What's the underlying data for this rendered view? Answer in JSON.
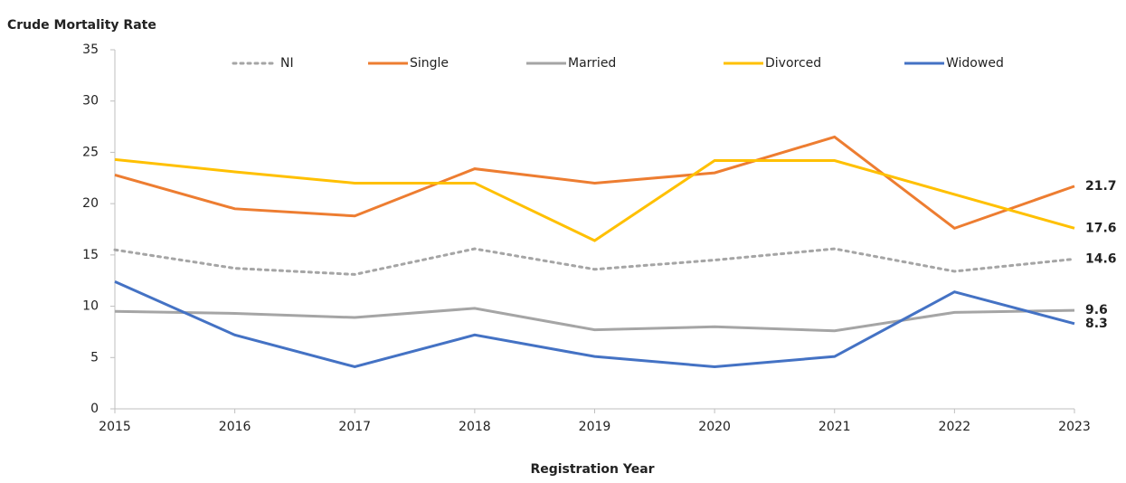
{
  "chart_data": {
    "type": "line",
    "title": "Crude Mortality Rate",
    "x_label": "Registration Year",
    "categories": [
      "2015",
      "2016",
      "2017",
      "2018",
      "2019",
      "2020",
      "2021",
      "2022",
      "2023"
    ],
    "series": [
      {
        "name": "NI",
        "color": "#a5a5a5",
        "style": "dotted",
        "values": [
          15.5,
          13.7,
          13.1,
          15.6,
          13.6,
          14.5,
          15.6,
          13.4,
          14.6
        ]
      },
      {
        "name": "Single",
        "color": "#ed7d31",
        "style": "solid",
        "values": [
          22.8,
          19.5,
          18.8,
          23.4,
          22.0,
          23.0,
          26.5,
          17.6,
          21.7
        ]
      },
      {
        "name": "Married",
        "color": "#a5a5a5",
        "style": "solid",
        "values": [
          9.5,
          9.3,
          8.9,
          9.8,
          7.7,
          8.0,
          7.6,
          9.4,
          9.6
        ]
      },
      {
        "name": "Divorced",
        "color": "#ffc000",
        "style": "solid",
        "values": [
          24.3,
          23.1,
          22.0,
          22.0,
          16.4,
          24.2,
          24.2,
          20.9,
          17.6
        ]
      },
      {
        "name": "Widowed",
        "color": "#4472c4",
        "style": "solid",
        "values": [
          12.4,
          7.2,
          4.1,
          7.2,
          5.1,
          4.1,
          5.1,
          11.4,
          8.3
        ]
      }
    ],
    "ylim": [
      0,
      35
    ],
    "yticks": [
      0,
      5,
      10,
      15,
      20,
      25,
      30,
      35
    ],
    "grid": false,
    "legend": "top"
  }
}
